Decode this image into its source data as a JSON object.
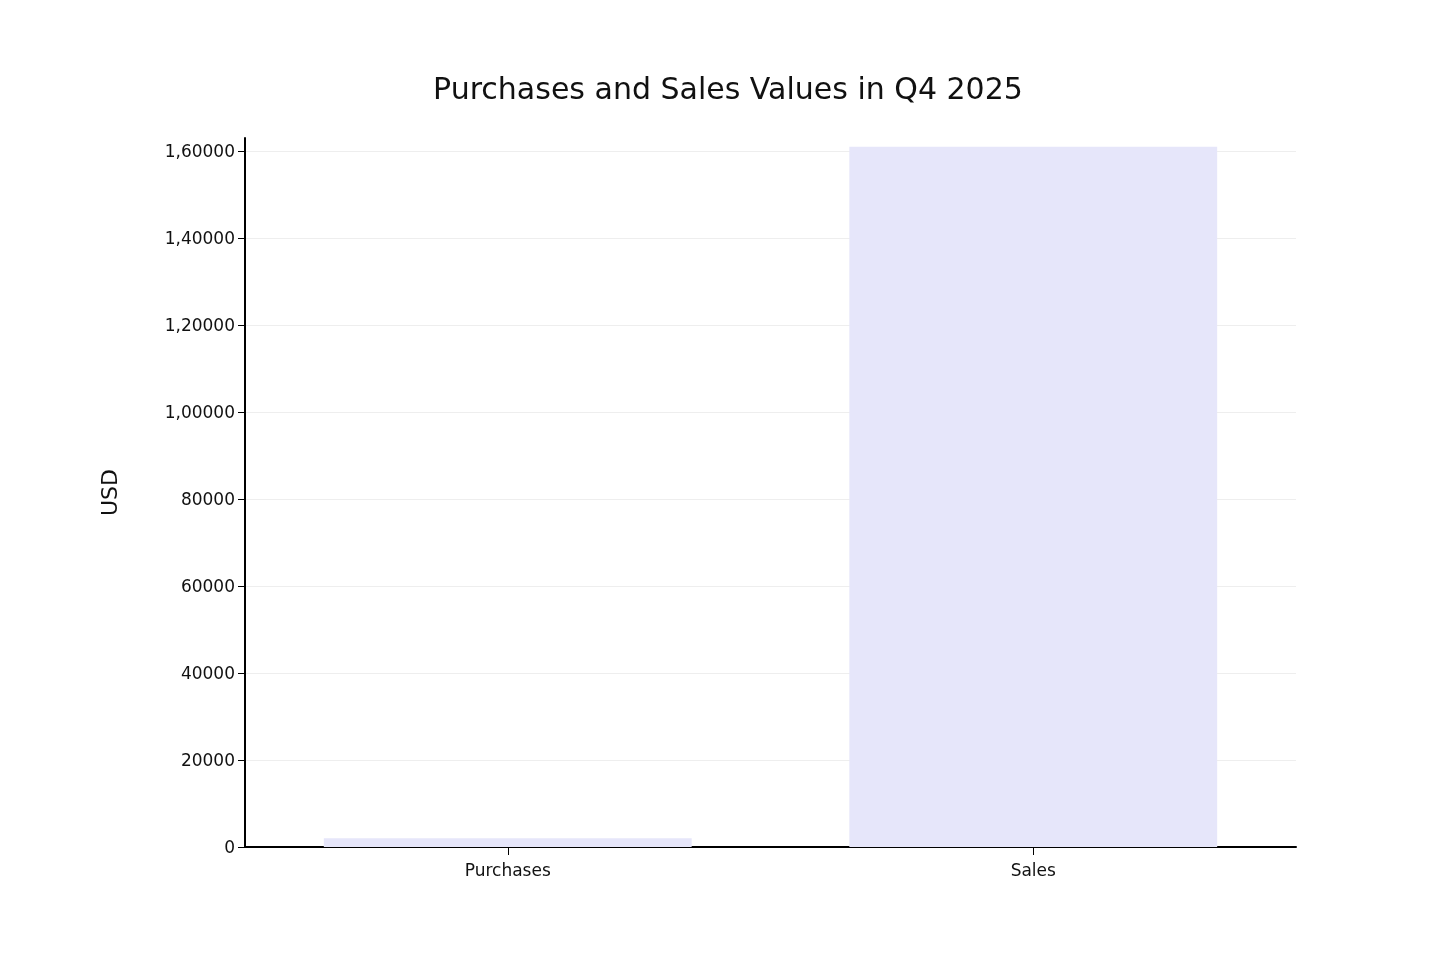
{
  "chart_data": {
    "type": "bar",
    "title": "Purchases and Sales Values in Q4 2025",
    "ylabel": "USD",
    "categories": [
      "Purchases",
      "Sales"
    ],
    "values": [
      2000,
      161000
    ],
    "color": "#e6e6fa",
    "ylim": [
      0,
      163000
    ],
    "yticks": [
      0,
      20000,
      40000,
      60000,
      80000,
      {
        "value": 100000,
        "label": "1,00000"
      },
      {
        "value": 120000,
        "label": "1,20000"
      },
      {
        "value": 140000,
        "label": "1,40000"
      },
      {
        "value": 160000,
        "label": "1,60000"
      }
    ],
    "grid": "y"
  }
}
